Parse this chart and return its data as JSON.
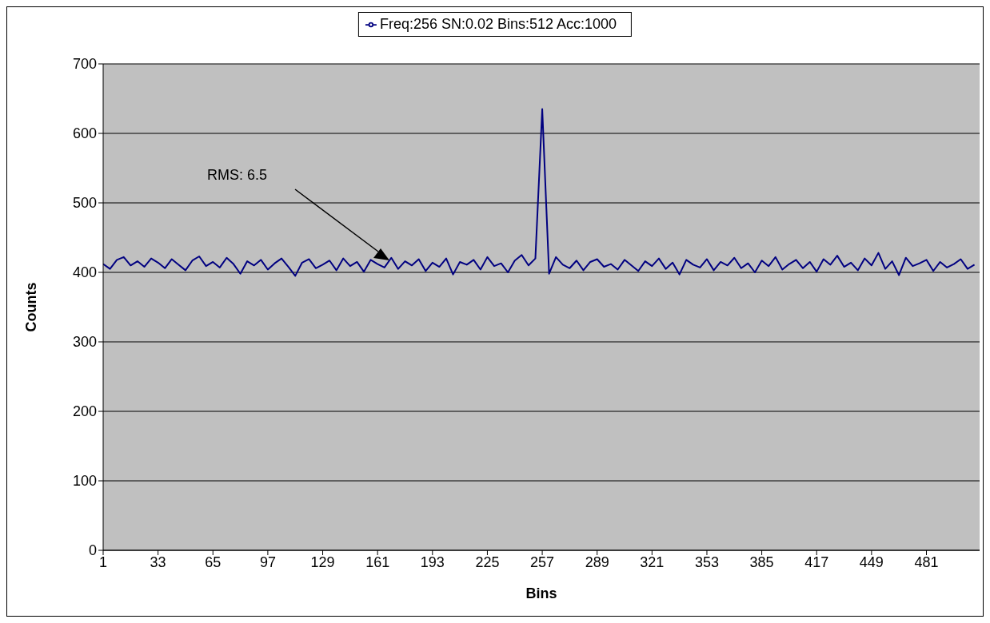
{
  "chart_data": {
    "type": "line",
    "xlabel": "Bins",
    "ylabel": "Counts",
    "x": [
      1,
      5,
      9,
      13,
      17,
      21,
      25,
      29,
      33,
      37,
      41,
      45,
      49,
      53,
      57,
      61,
      65,
      69,
      73,
      77,
      81,
      85,
      89,
      93,
      97,
      101,
      105,
      109,
      113,
      117,
      121,
      125,
      129,
      133,
      137,
      141,
      145,
      149,
      153,
      157,
      161,
      165,
      169,
      173,
      177,
      181,
      185,
      189,
      193,
      197,
      201,
      205,
      209,
      213,
      217,
      221,
      225,
      229,
      233,
      237,
      241,
      245,
      249,
      253,
      257,
      261,
      265,
      269,
      273,
      277,
      281,
      285,
      289,
      293,
      297,
      301,
      305,
      309,
      313,
      317,
      321,
      325,
      329,
      333,
      337,
      341,
      345,
      349,
      353,
      357,
      361,
      365,
      369,
      373,
      377,
      381,
      385,
      389,
      393,
      397,
      401,
      405,
      409,
      413,
      417,
      421,
      425,
      429,
      433,
      437,
      441,
      445,
      449,
      453,
      457,
      461,
      465,
      469,
      473,
      477,
      481,
      485,
      489,
      493,
      497,
      501,
      505,
      509
    ],
    "series": [
      {
        "name": "Freq:256 SN:0.02 Bins:512 Acc:1000",
        "color": "#000080",
        "values": [
          412,
          405,
          418,
          422,
          410,
          416,
          408,
          420,
          414,
          406,
          419,
          411,
          403,
          417,
          423,
          409,
          415,
          407,
          421,
          412,
          398,
          416,
          410,
          418,
          404,
          413,
          420,
          408,
          395,
          414,
          419,
          406,
          411,
          417,
          403,
          420,
          409,
          415,
          401,
          418,
          412,
          407,
          421,
          405,
          416,
          410,
          419,
          402,
          414,
          408,
          420,
          397,
          415,
          411,
          418,
          404,
          422,
          409,
          413,
          400,
          417,
          425,
          410,
          420,
          635,
          398,
          422,
          411,
          406,
          417,
          403,
          415,
          419,
          408,
          412,
          404,
          418,
          410,
          402,
          416,
          409,
          420,
          405,
          414,
          397,
          418,
          411,
          407,
          419,
          403,
          415,
          410,
          421,
          406,
          413,
          400,
          417,
          409,
          422,
          404,
          412,
          418,
          406,
          415,
          401,
          419,
          411,
          424,
          408,
          414,
          403,
          420,
          410,
          428,
          405,
          416,
          396,
          421,
          409,
          413,
          418,
          402,
          415,
          407,
          412,
          419,
          405,
          411
        ]
      }
    ],
    "xlim": [
      1,
      512
    ],
    "xticks": [
      1,
      33,
      65,
      97,
      129,
      161,
      193,
      225,
      257,
      289,
      321,
      353,
      385,
      417,
      449,
      481
    ],
    "ylim": [
      0,
      700
    ],
    "yticks": [
      0,
      100,
      200,
      300,
      400,
      500,
      600,
      700
    ],
    "grid": "y",
    "legend": "top",
    "annotations": [
      "RMS: 6.5"
    ]
  }
}
